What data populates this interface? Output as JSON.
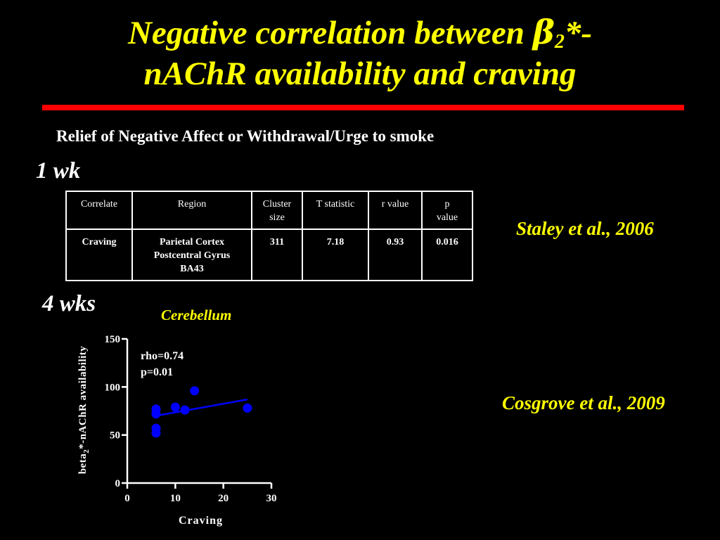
{
  "slide": {
    "title_line1_pre": "Negative correlation between ",
    "title_beta": "β",
    "title_beta_sub": "2",
    "title_line1_post": "*-",
    "title_line2": "nAChR availability and craving",
    "subtitle": "Relief of Negative Affect or Withdrawal/Urge to smoke",
    "week1_label": "1 wk",
    "week4_label": "4 wks",
    "citation1": "Staley et al., 2006",
    "citation2": "Cosgrove et al., 2009",
    "accent_color": "#ffff00",
    "rule_color": "#ff0000"
  },
  "table": {
    "headers": [
      "Correlate",
      "Region",
      "Cluster size",
      "T statistic",
      "r value",
      "p value"
    ],
    "row": {
      "correlate": "Craving",
      "region_line1": "Parietal Cortex",
      "region_line2": "Postcentral Gyrus",
      "region_line3": "BA43",
      "cluster_size": "311",
      "t_statistic": "7.18",
      "r_value": "0.93",
      "p_value": "0.016"
    }
  },
  "chart_data": {
    "type": "scatter",
    "title": "Cerebellum",
    "xlabel": "Craving",
    "ylabel_pre": "beta",
    "ylabel_sub": "2",
    "ylabel_post": "*-nAChR availability",
    "xlim": [
      0,
      30
    ],
    "ylim": [
      0,
      150
    ],
    "xticks": [
      0,
      10,
      20,
      30
    ],
    "yticks": [
      0,
      50,
      100,
      150
    ],
    "annotation_line1": "rho=0.74",
    "annotation_line2": "p=0.01",
    "points_color": "#0000ff",
    "points": [
      {
        "x": 6,
        "y": 77
      },
      {
        "x": 6,
        "y": 72
      },
      {
        "x": 6,
        "y": 57
      },
      {
        "x": 6,
        "y": 52
      },
      {
        "x": 10,
        "y": 79
      },
      {
        "x": 12,
        "y": 76
      },
      {
        "x": 14,
        "y": 96
      },
      {
        "x": 25,
        "y": 78
      }
    ],
    "fit_line": {
      "x": [
        6,
        25
      ],
      "y": [
        70,
        87
      ]
    }
  }
}
